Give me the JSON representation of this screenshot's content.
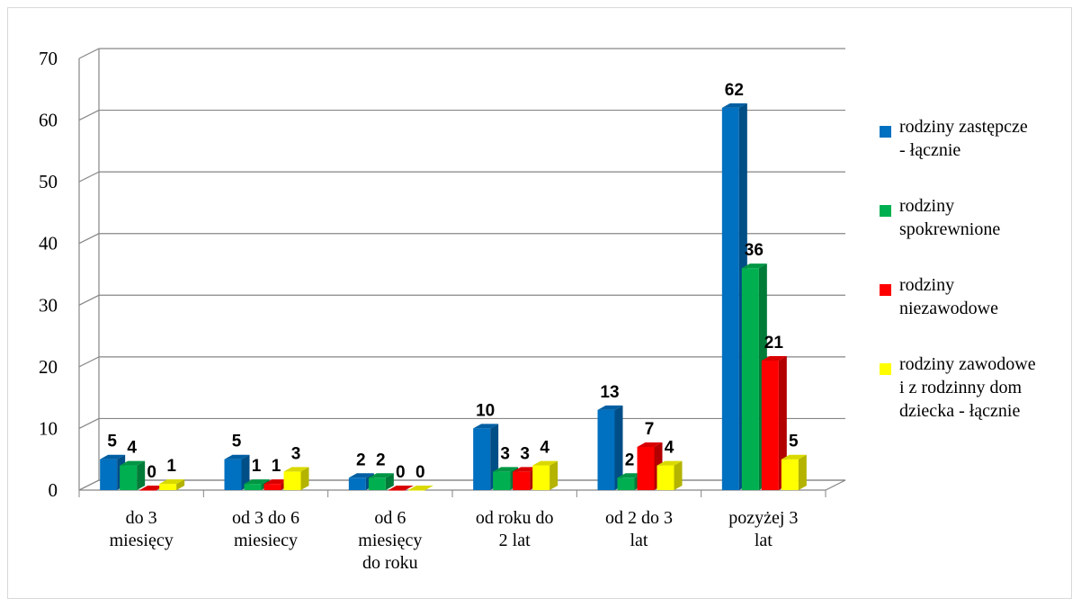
{
  "chart_data": {
    "type": "bar",
    "categories": [
      "do 3\nmiesięcy",
      "od 3 do 6\nmiesiecy",
      "od 6\nmiesięcy\ndo roku",
      "od roku do\n2 lat",
      "od 2 do 3\nlat",
      "pozyżej 3\nlat"
    ],
    "series": [
      {
        "name": "rodziny zastępcze\n- łącznie",
        "color": "#0070c0",
        "values": [
          5,
          5,
          2,
          10,
          13,
          62
        ]
      },
      {
        "name": "rodziny\nspokrewnione",
        "color": "#00b050",
        "values": [
          4,
          1,
          2,
          3,
          2,
          36
        ]
      },
      {
        "name": "rodziny\nniezawodowe",
        "color": "#ff0000",
        "values": [
          0,
          1,
          0,
          3,
          7,
          21
        ]
      },
      {
        "name": "rodziny zawodowe\ni z rodzinny dom\ndziecka -  łącznie",
        "color": "#ffff00",
        "values": [
          1,
          3,
          0,
          4,
          4,
          5
        ]
      }
    ],
    "ylim": [
      0,
      70
    ],
    "yticks": [
      0,
      10,
      20,
      30,
      40,
      50,
      60,
      70
    ],
    "grid": true,
    "legend": "right",
    "title": "",
    "xlabel": "",
    "ylabel": ""
  }
}
